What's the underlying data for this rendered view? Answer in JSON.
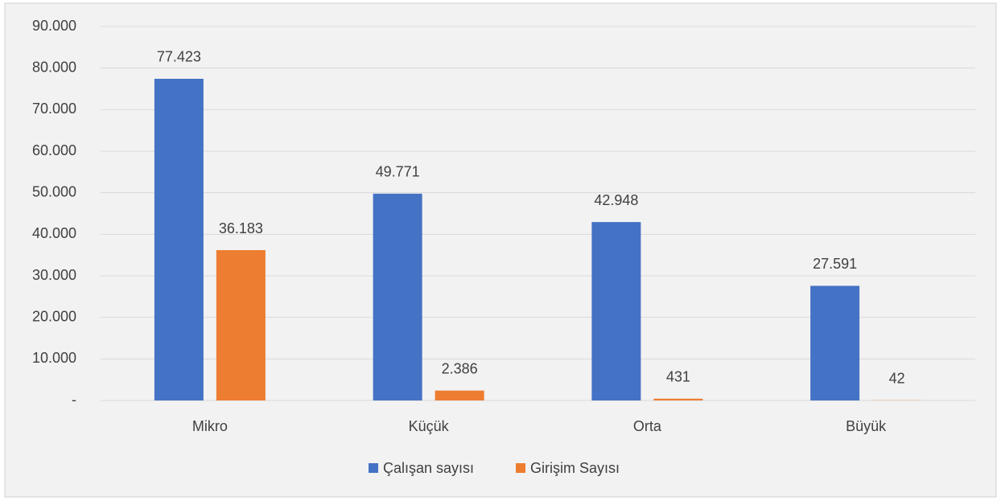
{
  "chart_data": {
    "type": "bar",
    "categories": [
      "Mikro",
      "Küçük",
      "Orta",
      "Büyük"
    ],
    "series": [
      {
        "name": "Çalışan sayısı",
        "color": "#4472c4",
        "values": [
          77423,
          49771,
          42948,
          27591
        ],
        "value_labels": [
          "77.423",
          "49.771",
          "42.948",
          "27.591"
        ]
      },
      {
        "name": "Girişim Sayısı",
        "color": "#ed7d31",
        "values": [
          36183,
          2386,
          431,
          42
        ],
        "value_labels": [
          "36.183",
          "2.386",
          "431",
          "42"
        ]
      }
    ],
    "ylim": [
      0,
      90000
    ],
    "yticks": [
      {
        "value": 0,
        "label": "-"
      },
      {
        "value": 10000,
        "label": "10.000"
      },
      {
        "value": 20000,
        "label": "20.000"
      },
      {
        "value": 30000,
        "label": "30.000"
      },
      {
        "value": 40000,
        "label": "40.000"
      },
      {
        "value": 50000,
        "label": "50.000"
      },
      {
        "value": 60000,
        "label": "60.000"
      },
      {
        "value": 70000,
        "label": "70.000"
      },
      {
        "value": 80000,
        "label": "80.000"
      },
      {
        "value": 90000,
        "label": "90.000"
      }
    ],
    "grid": true,
    "legend": "bottom"
  }
}
